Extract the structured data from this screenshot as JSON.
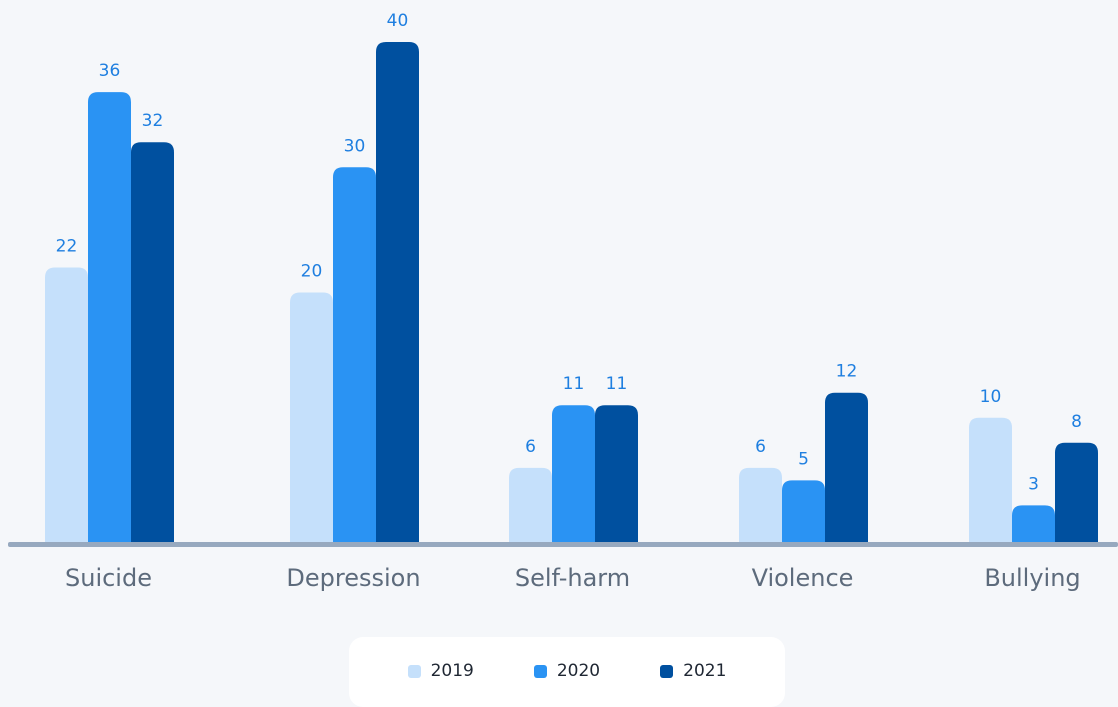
{
  "chart_data": {
    "type": "bar",
    "categories": [
      "Suicide",
      "Depression",
      "Self-harm",
      "Violence",
      "Bullying"
    ],
    "series": [
      {
        "name": "2019",
        "color": "#c5e0fb",
        "values": [
          22,
          20,
          6,
          6,
          10
        ]
      },
      {
        "name": "2020",
        "color": "#2a93f3",
        "values": [
          36,
          30,
          11,
          5,
          3
        ]
      },
      {
        "name": "2021",
        "color": "#00509f",
        "values": [
          32,
          40,
          11,
          12,
          8
        ]
      }
    ],
    "ylim": [
      0,
      40
    ],
    "grid": false,
    "legend_position": "bottom-center",
    "colors": {
      "label": "#1f7fe0",
      "axis": "#97a9bf",
      "category_text": "#5d6b7c"
    }
  }
}
